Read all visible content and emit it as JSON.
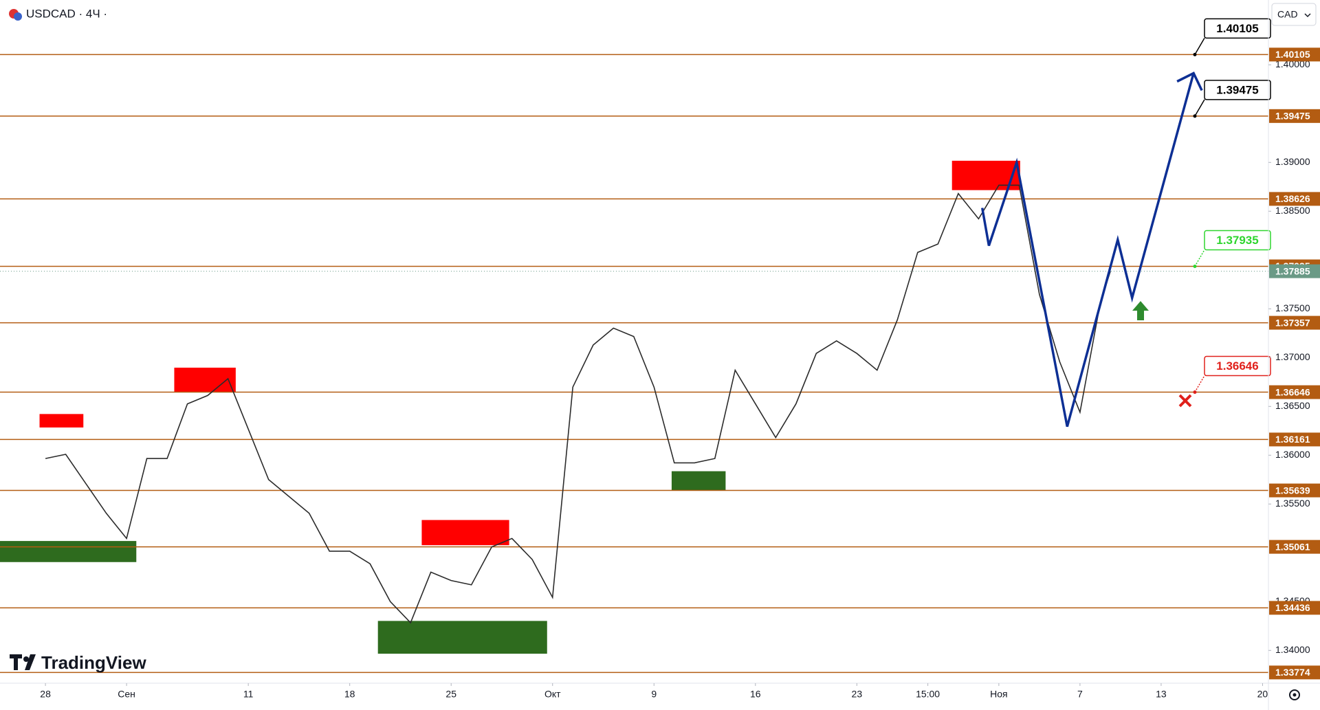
{
  "chart_data": {
    "type": "line",
    "title": "USDCAD · 4Ч ·",
    "currency": "CAD",
    "watermark": "TradingView",
    "color": "#2b2b2b",
    "x": [
      0,
      1,
      2,
      3,
      4,
      5,
      6,
      7,
      8,
      9,
      10,
      11,
      12,
      13,
      14,
      15,
      16,
      17,
      18,
      19,
      20,
      21,
      22,
      23,
      24,
      25,
      26,
      27,
      28,
      29,
      30,
      31,
      32,
      33,
      34,
      35,
      36,
      37,
      38,
      39,
      40,
      41,
      42,
      43,
      44,
      45,
      46,
      47,
      48,
      49,
      50,
      51,
      52,
      52.5
    ],
    "values": [
      1.35966,
      1.36009,
      1.35707,
      1.35405,
      1.35147,
      1.35966,
      1.35966,
      1.36526,
      1.36612,
      1.36784,
      1.36267,
      1.3575,
      1.35578,
      1.35405,
      1.35017,
      1.35017,
      1.34888,
      1.345,
      1.34284,
      1.34802,
      1.34716,
      1.34672,
      1.3506,
      1.35147,
      1.34931,
      1.34543,
      1.36698,
      1.37129,
      1.37302,
      1.37216,
      1.36698,
      1.35922,
      1.35922,
      1.35966,
      1.36871,
      1.36526,
      1.36181,
      1.36526,
      1.37043,
      1.37172,
      1.37043,
      1.36871,
      1.37388,
      1.38078,
      1.38164,
      1.38681,
      1.38422,
      1.38767,
      1.38767,
      1.37647,
      1.36957,
      1.3644,
      1.3756,
      1.37885
    ],
    "xlim": [
      -2.24,
      60.29
    ],
    "ylim": [
      1.33664,
      1.40664
    ],
    "xticks": [
      {
        "value": 0,
        "label": "28"
      },
      {
        "value": 4,
        "label": "Сен"
      },
      {
        "value": 10,
        "label": "11"
      },
      {
        "value": 15,
        "label": "18"
      },
      {
        "value": 20,
        "label": "25"
      },
      {
        "value": 25,
        "label": "Окт"
      },
      {
        "value": 30,
        "label": "9"
      },
      {
        "value": 35,
        "label": "16"
      },
      {
        "value": 40,
        "label": "23"
      },
      {
        "value": 43.5,
        "label": "15:00"
      },
      {
        "value": 47,
        "label": "Ноя"
      },
      {
        "value": 51,
        "label": "7"
      },
      {
        "value": 55,
        "label": "13"
      },
      {
        "value": 60,
        "label": "20"
      }
    ],
    "yticks": [
      {
        "value": 1.34,
        "label": "1.34000"
      },
      {
        "value": 1.345,
        "label": "1.34500"
      },
      {
        "value": 1.355,
        "label": "1.35500"
      },
      {
        "value": 1.36,
        "label": "1.36000"
      },
      {
        "value": 1.365,
        "label": "1.36500"
      },
      {
        "value": 1.37,
        "label": "1.37000"
      },
      {
        "value": 1.375,
        "label": "1.37500"
      },
      {
        "value": 1.385,
        "label": "1.38500"
      },
      {
        "value": 1.39,
        "label": "1.39000"
      },
      {
        "value": 1.4,
        "label": "1.40000"
      }
    ],
    "grid": false,
    "level_color": "#b35c12",
    "levels": [
      1.40105,
      1.39475,
      1.38626,
      1.37935,
      1.37357,
      1.36646,
      1.36161,
      1.35639,
      1.35061,
      1.34436,
      1.33774
    ],
    "last_color": "#6a9a86",
    "callouts": [
      {
        "value": 1.40105,
        "color": "#000000"
      },
      {
        "value": 1.39475,
        "color": "#000000"
      },
      {
        "value": 1.37935,
        "color": "#2ed52e"
      },
      {
        "value": 1.36646,
        "color": "#e0201b"
      }
    ],
    "zones": [
      {
        "x": [
          -0.29,
          1.87
        ],
        "y": [
          1.36284,
          1.36422
        ],
        "color": "#ff0000"
      },
      {
        "x": [
          6.35,
          9.38
        ],
        "y": [
          1.36647,
          1.36897
        ],
        "color": "#ff0000"
      },
      {
        "x": [
          18.55,
          22.86
        ],
        "y": [
          1.35078,
          1.35336
        ],
        "color": "#ff0000"
      },
      {
        "x": [
          44.69,
          48.05
        ],
        "y": [
          1.38716,
          1.39017
        ],
        "color": "#ff0000"
      },
      {
        "x": [
          -2.24,
          4.48
        ],
        "y": [
          1.34905,
          1.35121
        ],
        "color": "#2e6b1e"
      },
      {
        "x": [
          16.39,
          24.73
        ],
        "y": [
          1.33966,
          1.34302
        ],
        "color": "#2e6b1e"
      },
      {
        "x": [
          30.87,
          33.53
        ],
        "y": [
          1.35638,
          1.35836
        ],
        "color": "#2e6b1e"
      }
    ],
    "projection": {
      "color": "#0d2f94",
      "x": [
        46.18,
        46.51,
        47.88,
        50.37,
        52.86,
        53.57,
        56.6
      ],
      "y": [
        1.38534,
        1.38147,
        1.39,
        1.36293,
        1.38207,
        1.37612,
        1.39914
      ]
    }
  }
}
